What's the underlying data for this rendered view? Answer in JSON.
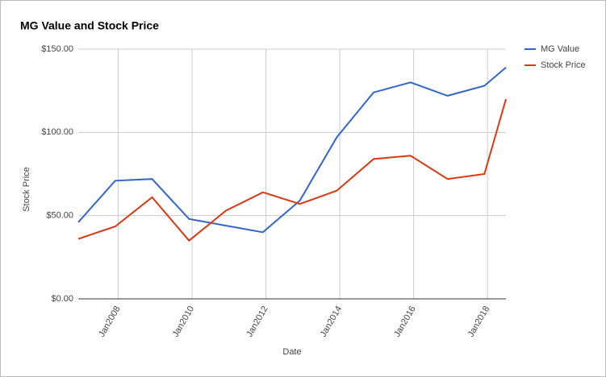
{
  "chart_data": {
    "type": "line",
    "title": "MG Value and Stock Price",
    "x_label": "Date",
    "y_label": "Stock Price",
    "x": [
      "2006-12",
      "2007-12",
      "2008-12",
      "2009-12",
      "2010-12",
      "2011-12",
      "2012-12",
      "2013-12",
      "2014-12",
      "2015-12",
      "2016-12",
      "2017-12",
      "2018-07"
    ],
    "series": [
      {
        "name": "MG Value",
        "color": "#3366cc",
        "values": [
          46,
          71,
          72,
          48,
          44,
          40,
          59,
          97,
          124,
          130,
          122,
          128,
          139
        ]
      },
      {
        "name": "Stock Price",
        "color": "#dc3912",
        "values": [
          36,
          43.5,
          61,
          35,
          53,
          64,
          57,
          65,
          84,
          86,
          72,
          75,
          120
        ]
      }
    ],
    "xlim": [
      "2006-12",
      "2018-07"
    ],
    "xticks": [
      {
        "value": "2008-01",
        "label": "Jan2008"
      },
      {
        "value": "2010-01",
        "label": "Jan2010"
      },
      {
        "value": "2012-01",
        "label": "Jan2012"
      },
      {
        "value": "2014-01",
        "label": "Jan2014"
      },
      {
        "value": "2016-01",
        "label": "Jan2016"
      },
      {
        "value": "2018-01",
        "label": "Jan2018"
      }
    ],
    "ylim": [
      0,
      150
    ],
    "yticks": [
      {
        "value": 0,
        "label": "$0.00"
      },
      {
        "value": 50,
        "label": "$50.00"
      },
      {
        "value": 100,
        "label": "$100.00"
      },
      {
        "value": 150,
        "label": "$150.00"
      }
    ],
    "grid": true,
    "legend": "right"
  }
}
